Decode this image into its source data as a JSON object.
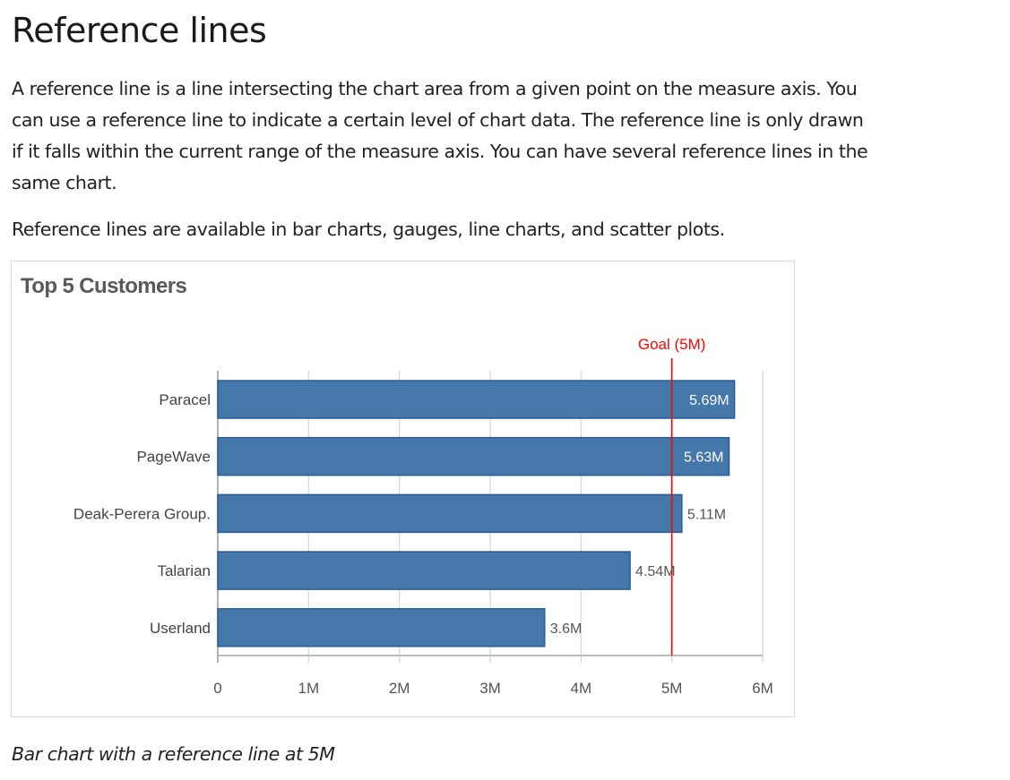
{
  "heading": "Reference lines",
  "paragraph1": [
    "A reference line is a line intersecting the chart area from a given point on the measure axis. You",
    "can use a reference line to indicate a certain level of chart data. The reference line is only drawn",
    "if it falls within the current range of the measure axis. You can have several reference lines in the",
    "same chart."
  ],
  "paragraph2": "Reference lines are available in bar charts, gauges, line charts, and scatter plots.",
  "caption": "Bar chart with a reference line at 5M",
  "chart_data": {
    "type": "bar",
    "orientation": "horizontal",
    "title": "Top 5 Customers",
    "categories": [
      "Paracel",
      "PageWave",
      "Deak-Perera Group.",
      "Talarian",
      "Userland"
    ],
    "values": [
      5.69,
      5.63,
      5.11,
      4.54,
      3.6
    ],
    "value_labels": [
      "5.69M",
      "5.63M",
      "5.11M",
      "4.54M",
      "3.6M"
    ],
    "xlim": [
      0,
      6
    ],
    "x_ticks": [
      0,
      1,
      2,
      3,
      4,
      5,
      6
    ],
    "x_tick_labels": [
      "0",
      "1M",
      "2M",
      "3M",
      "4M",
      "5M",
      "6M"
    ],
    "grid": true,
    "reference_line": {
      "value": 5,
      "label": "Goal (5M)",
      "color": "#ff0000"
    },
    "bar_color": "#4477aa",
    "bar_border_color": "#2a5d96"
  }
}
